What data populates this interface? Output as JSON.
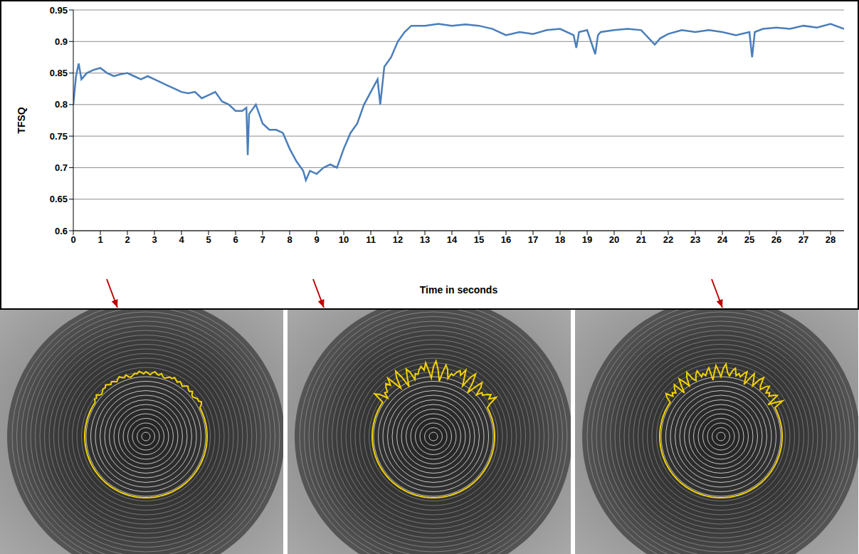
{
  "chart_data": {
    "type": "line",
    "x_label": "Time in seconds",
    "y_label": "TFSQ",
    "color": "#4a7ebb",
    "grid": true,
    "xlim": [
      0,
      28.5
    ],
    "ylim": [
      0.6,
      0.95
    ],
    "xticks": [
      0,
      1,
      2,
      3,
      4,
      5,
      6,
      7,
      8,
      9,
      10,
      11,
      12,
      13,
      14,
      15,
      16,
      17,
      18,
      19,
      20,
      21,
      22,
      23,
      24,
      25,
      26,
      27,
      28
    ],
    "yticks": [
      0.6,
      0.65,
      0.7,
      0.75,
      0.8,
      0.85,
      0.9,
      0.95
    ],
    "x": [
      0,
      0.1,
      0.2,
      0.3,
      0.5,
      0.75,
      1.0,
      1.25,
      1.5,
      1.75,
      2.0,
      2.25,
      2.5,
      2.75,
      3.0,
      3.25,
      3.5,
      3.75,
      4.0,
      4.25,
      4.5,
      4.75,
      5.0,
      5.25,
      5.5,
      5.75,
      6.0,
      6.25,
      6.4,
      6.45,
      6.5,
      6.75,
      7.0,
      7.25,
      7.5,
      7.75,
      8.0,
      8.25,
      8.5,
      8.6,
      8.75,
      9.0,
      9.25,
      9.5,
      9.75,
      10.0,
      10.25,
      10.5,
      10.75,
      11.0,
      11.25,
      11.35,
      11.5,
      11.75,
      12.0,
      12.25,
      12.5,
      13,
      13.5,
      14,
      14.5,
      15,
      15.5,
      16,
      16.5,
      17,
      17.5,
      18,
      18.5,
      18.6,
      18.7,
      19,
      19.3,
      19.4,
      19.5,
      20,
      20.5,
      21,
      21.5,
      21.7,
      22,
      22.5,
      23,
      23.5,
      24,
      24.5,
      25,
      25.1,
      25.2,
      25.5,
      26,
      26.5,
      27,
      27.5,
      28,
      28.5
    ],
    "values": [
      0.8,
      0.845,
      0.865,
      0.84,
      0.85,
      0.855,
      0.858,
      0.85,
      0.845,
      0.848,
      0.85,
      0.845,
      0.84,
      0.845,
      0.84,
      0.835,
      0.83,
      0.825,
      0.82,
      0.818,
      0.82,
      0.81,
      0.815,
      0.82,
      0.805,
      0.8,
      0.79,
      0.79,
      0.795,
      0.72,
      0.785,
      0.8,
      0.77,
      0.76,
      0.76,
      0.755,
      0.73,
      0.71,
      0.695,
      0.68,
      0.695,
      0.69,
      0.7,
      0.705,
      0.7,
      0.73,
      0.755,
      0.77,
      0.8,
      0.82,
      0.84,
      0.8,
      0.86,
      0.875,
      0.9,
      0.915,
      0.925,
      0.925,
      0.928,
      0.925,
      0.927,
      0.925,
      0.92,
      0.91,
      0.915,
      0.912,
      0.918,
      0.92,
      0.91,
      0.89,
      0.915,
      0.918,
      0.88,
      0.91,
      0.915,
      0.918,
      0.92,
      0.918,
      0.895,
      0.905,
      0.912,
      0.918,
      0.915,
      0.918,
      0.915,
      0.91,
      0.915,
      0.875,
      0.915,
      0.92,
      0.922,
      0.92,
      0.925,
      0.922,
      0.928,
      0.92
    ]
  }
}
